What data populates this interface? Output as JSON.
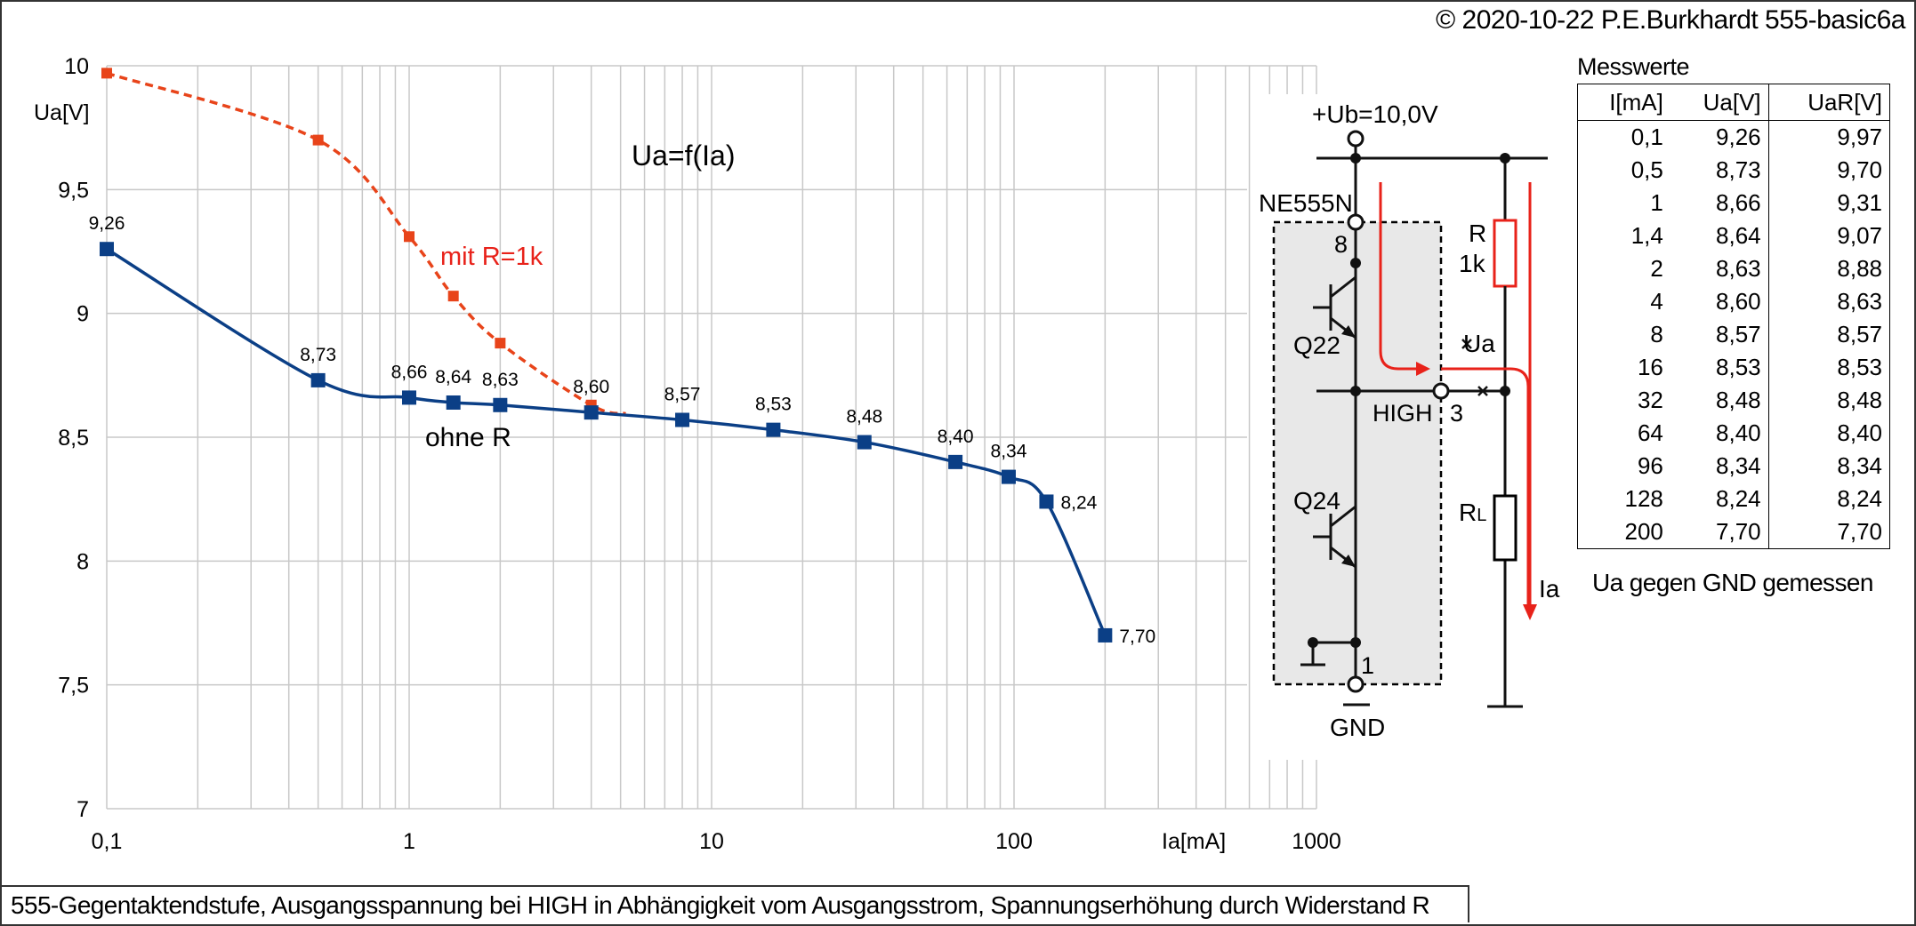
{
  "copyright": "© 2020-10-22 P.E.Burkhardt 555-basic6a",
  "caption": "555-Gegentaktendstufe, Ausgangsspannung bei HIGH in Abhängigkeit vom Ausgangsstrom, Spannungserhöhung durch Widerstand R",
  "chart_data": {
    "type": "line",
    "title": "Ua=f(Ia)",
    "xlabel": "Ia[mA]",
    "ylabel": "Ua[V]",
    "xscale": "log",
    "xlim": [
      0.1,
      1000
    ],
    "ylim": [
      7,
      10
    ],
    "x_tick_labels": [
      "0,1",
      "1",
      "10",
      "100",
      "1000"
    ],
    "x_ticks": [
      0.1,
      1,
      10,
      100,
      1000
    ],
    "y_tick_labels": [
      "7",
      "7,5",
      "8",
      "8,5",
      "9",
      "9,5",
      "10"
    ],
    "y_ticks": [
      7,
      7.5,
      8,
      8.5,
      9,
      9.5,
      10
    ],
    "grid": true,
    "series": [
      {
        "name": "ohne R",
        "color": "#0b3f86",
        "style": "solid",
        "x": [
          0.1,
          0.5,
          1,
          1.4,
          2,
          4,
          8,
          16,
          32,
          64,
          96,
          128,
          200
        ],
        "y": [
          9.26,
          8.73,
          8.66,
          8.64,
          8.63,
          8.6,
          8.57,
          8.53,
          8.48,
          8.4,
          8.34,
          8.24,
          7.7
        ],
        "labels": [
          "9,26",
          "8,73",
          "8,66",
          "8,64",
          "8,63",
          "8,60",
          "8,57",
          "8,53",
          "8,48",
          "8,40",
          "8,34",
          "8,24",
          "7,70"
        ]
      },
      {
        "name": "mit R=1k",
        "color": "#e8441a",
        "label_color": "#e8221a",
        "style": "dashed",
        "x": [
          0.1,
          0.5,
          1,
          1.4,
          2,
          4
        ],
        "y": [
          9.97,
          9.7,
          9.31,
          9.07,
          8.88,
          8.63
        ]
      }
    ]
  },
  "circuit": {
    "ub_label": "+Ub=10,0V",
    "ic_label": "NE555N",
    "pin8": "8",
    "pin3": "3",
    "pin1": "1",
    "q22": "Q22",
    "q24": "Q24",
    "high": "HIGH",
    "r_label": "R",
    "r_value": "1k",
    "ua": "Ua",
    "rl_main": "R",
    "rl_sub": "L",
    "ia": "Ia",
    "gnd": "GND"
  },
  "table": {
    "title": "Messwerte",
    "headers": [
      "I[mA]",
      "Ua[V]",
      "UaR[V]"
    ],
    "rows": [
      [
        "0,1",
        "9,26",
        "9,97"
      ],
      [
        "0,5",
        "8,73",
        "9,70"
      ],
      [
        "1",
        "8,66",
        "9,31"
      ],
      [
        "1,4",
        "8,64",
        "9,07"
      ],
      [
        "2",
        "8,63",
        "8,88"
      ],
      [
        "4",
        "8,60",
        "8,63"
      ],
      [
        "8",
        "8,57",
        "8,57"
      ],
      [
        "16",
        "8,53",
        "8,53"
      ],
      [
        "32",
        "8,48",
        "8,48"
      ],
      [
        "64",
        "8,40",
        "8,40"
      ],
      [
        "96",
        "8,34",
        "8,34"
      ],
      [
        "128",
        "8,24",
        "8,24"
      ],
      [
        "200",
        "7,70",
        "7,70"
      ]
    ]
  },
  "note": "Ua gegen GND gemessen"
}
